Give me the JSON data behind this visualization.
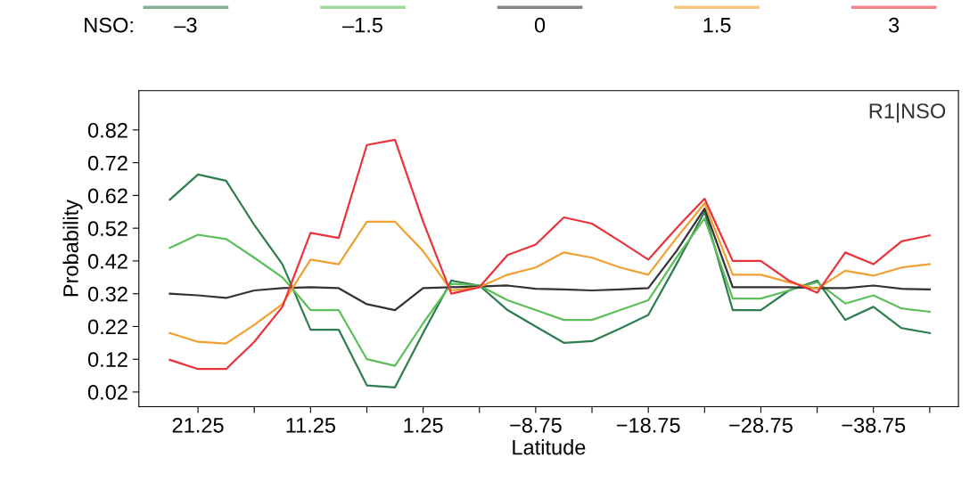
{
  "chart_data": {
    "type": "line",
    "xlabel": "Latitude",
    "ylabel": "Probability",
    "legend_title": "NSO:",
    "legend": "top",
    "grid": false,
    "annotations": [
      "R1|NSO"
    ],
    "x": [
      23.75,
      21.25,
      18.75,
      16.25,
      13.75,
      11.25,
      8.75,
      6.25,
      3.75,
      1.25,
      -1.25,
      -3.75,
      -6.25,
      -8.75,
      -11.25,
      -13.75,
      -16.25,
      -18.75,
      -21.25,
      -23.75,
      -26.25,
      -28.75,
      -31.25,
      -33.75,
      -36.25,
      -38.75,
      -41.25,
      -43.75
    ],
    "xlim": [
      26.5,
      -46.3
    ],
    "xticks": [
      21.25,
      {
        "value": 16.25,
        "label": null
      },
      11.25,
      {
        "value": 6.25,
        "label": null
      },
      1.25,
      {
        "value": -3.75,
        "label": null
      },
      {
        "value": -8.75,
        "label": "−8.75"
      },
      {
        "value": -13.75,
        "label": null
      },
      {
        "value": -18.75,
        "label": "−18.75"
      },
      {
        "value": -23.75,
        "label": null
      },
      {
        "value": -28.75,
        "label": "−28.75"
      },
      {
        "value": -33.75,
        "label": null
      },
      {
        "value": -38.75,
        "label": "−38.75"
      },
      {
        "value": -43.75,
        "label": null
      }
    ],
    "ylim": [
      -0.025,
      0.94
    ],
    "yticks": [
      0.02,
      0.12,
      0.22,
      0.32,
      0.42,
      0.52,
      0.62,
      0.72,
      0.82
    ],
    "series": [
      {
        "name": "–3",
        "color": "#2e7d4f",
        "values": [
          0.607,
          0.684,
          0.665,
          0.53,
          0.41,
          0.21,
          0.21,
          0.04,
          0.034,
          0.2,
          0.36,
          0.345,
          0.27,
          0.22,
          0.17,
          0.175,
          0.214,
          0.255,
          0.41,
          0.57,
          0.27,
          0.27,
          0.33,
          0.36,
          0.24,
          0.28,
          0.215,
          0.2
        ]
      },
      {
        "name": "–1.5",
        "color": "#5cbf5a",
        "values": [
          0.46,
          0.5,
          0.487,
          0.43,
          0.37,
          0.27,
          0.27,
          0.12,
          0.1,
          0.23,
          0.35,
          0.345,
          0.3,
          0.27,
          0.24,
          0.24,
          0.27,
          0.3,
          0.43,
          0.55,
          0.305,
          0.305,
          0.33,
          0.355,
          0.29,
          0.315,
          0.275,
          0.265
        ]
      },
      {
        "name": "0",
        "color": "#333333",
        "values": [
          0.32,
          0.315,
          0.307,
          0.33,
          0.337,
          0.34,
          0.337,
          0.288,
          0.27,
          0.337,
          0.34,
          0.342,
          0.345,
          0.335,
          0.333,
          0.33,
          0.333,
          0.337,
          0.45,
          0.58,
          0.34,
          0.34,
          0.34,
          0.337,
          0.337,
          0.345,
          0.335,
          0.333
        ]
      },
      {
        "name": "1.5",
        "color": "#f0a030",
        "values": [
          0.2,
          0.173,
          0.168,
          0.225,
          0.288,
          0.424,
          0.41,
          0.54,
          0.54,
          0.45,
          0.33,
          0.34,
          0.378,
          0.4,
          0.446,
          0.43,
          0.4,
          0.378,
          0.49,
          0.596,
          0.378,
          0.378,
          0.355,
          0.335,
          0.39,
          0.375,
          0.4,
          0.41
        ]
      },
      {
        "name": "3",
        "color": "#e8343a",
        "values": [
          0.118,
          0.09,
          0.09,
          0.173,
          0.28,
          0.506,
          0.49,
          0.774,
          0.79,
          0.54,
          0.32,
          0.34,
          0.438,
          0.47,
          0.553,
          0.534,
          0.48,
          0.424,
          0.52,
          0.61,
          0.42,
          0.42,
          0.36,
          0.323,
          0.446,
          0.41,
          0.48,
          0.498
        ]
      }
    ]
  }
}
